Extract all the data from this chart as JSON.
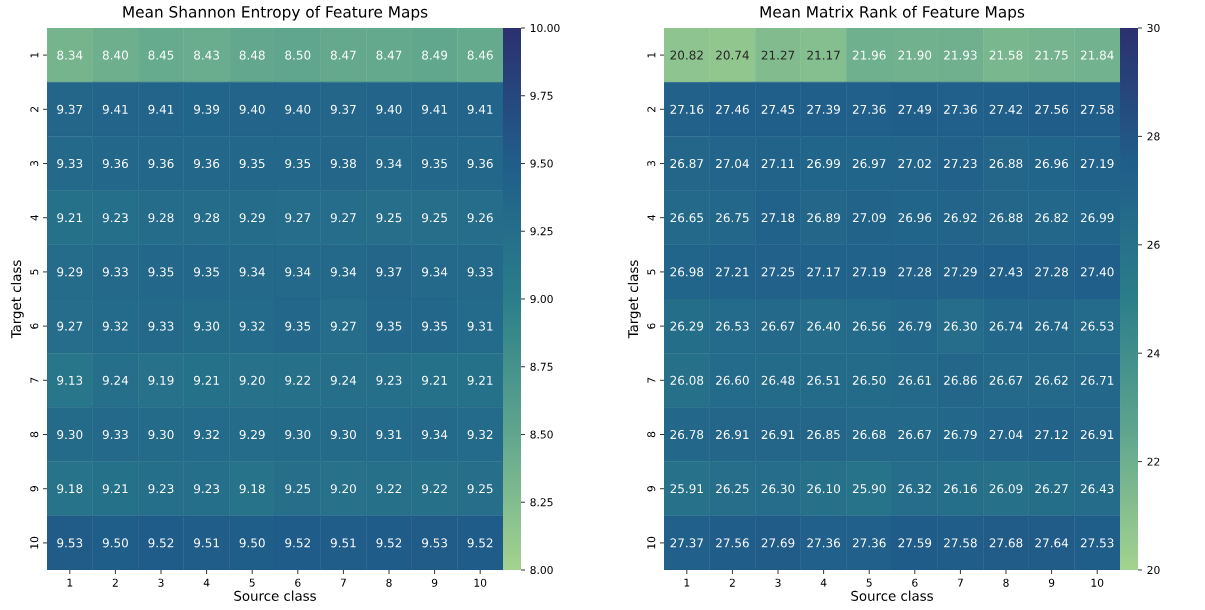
{
  "chart_data": [
    {
      "type": "heatmap",
      "title": "Mean Shannon Entropy of Feature Maps",
      "xlabel": "Source class",
      "ylabel": "Target class",
      "categories": [
        "1",
        "2",
        "3",
        "4",
        "5",
        "6",
        "7",
        "8",
        "9",
        "10"
      ],
      "y_categories": [
        "1",
        "2",
        "3",
        "4",
        "5",
        "6",
        "7",
        "8",
        "9",
        "10"
      ],
      "cells": [
        [
          8.34,
          8.4,
          8.45,
          8.43,
          8.48,
          8.5,
          8.47,
          8.47,
          8.49,
          8.46
        ],
        [
          9.37,
          9.41,
          9.41,
          9.39,
          9.4,
          9.4,
          9.37,
          9.4,
          9.41,
          9.41
        ],
        [
          9.33,
          9.36,
          9.36,
          9.36,
          9.35,
          9.35,
          9.38,
          9.34,
          9.35,
          9.36
        ],
        [
          9.21,
          9.23,
          9.28,
          9.28,
          9.29,
          9.27,
          9.27,
          9.25,
          9.25,
          9.26
        ],
        [
          9.29,
          9.33,
          9.35,
          9.35,
          9.34,
          9.34,
          9.34,
          9.37,
          9.34,
          9.33
        ],
        [
          9.27,
          9.32,
          9.33,
          9.3,
          9.32,
          9.35,
          9.27,
          9.35,
          9.35,
          9.31
        ],
        [
          9.13,
          9.24,
          9.19,
          9.21,
          9.2,
          9.22,
          9.24,
          9.23,
          9.21,
          9.21
        ],
        [
          9.3,
          9.33,
          9.3,
          9.32,
          9.29,
          9.3,
          9.3,
          9.31,
          9.34,
          9.32
        ],
        [
          9.18,
          9.21,
          9.23,
          9.23,
          9.18,
          9.25,
          9.2,
          9.22,
          9.22,
          9.25
        ],
        [
          9.53,
          9.5,
          9.52,
          9.51,
          9.5,
          9.52,
          9.51,
          9.52,
          9.53,
          9.52
        ]
      ],
      "cell_labels": [
        [
          "8.34",
          "8.40",
          "8.45",
          "8.43",
          "8.48",
          "8.50",
          "8.47",
          "8.47",
          "8.49",
          "8.46"
        ],
        [
          "9.37",
          "9.41",
          "9.41",
          "9.39",
          "9.40",
          "9.40",
          "9.37",
          "9.40",
          "9.41",
          "9.41"
        ],
        [
          "9.33",
          "9.36",
          "9.36",
          "9.36",
          "9.35",
          "9.35",
          "9.38",
          "9.34",
          "9.35",
          "9.36"
        ],
        [
          "9.21",
          "9.23",
          "9.28",
          "9.28",
          "9.29",
          "9.27",
          "9.27",
          "9.25",
          "9.25",
          "9.26"
        ],
        [
          "9.29",
          "9.33",
          "9.35",
          "9.35",
          "9.34",
          "9.34",
          "9.34",
          "9.37",
          "9.34",
          "9.33"
        ],
        [
          "9.27",
          "9.32",
          "9.33",
          "9.30",
          "9.32",
          "9.35",
          "9.27",
          "9.35",
          "9.35",
          "9.31"
        ],
        [
          "9.13",
          "9.24",
          "9.19",
          "9.21",
          "9.20",
          "9.22",
          "9.24",
          "9.23",
          "9.21",
          "9.21"
        ],
        [
          "9.30",
          "9.33",
          "9.30",
          "9.32",
          "9.29",
          "9.30",
          "9.30",
          "9.31",
          "9.34",
          "9.32"
        ],
        [
          "9.18",
          "9.21",
          "9.23",
          "9.23",
          "9.18",
          "9.25",
          "9.20",
          "9.22",
          "9.22",
          "9.25"
        ],
        [
          "9.53",
          "9.50",
          "9.52",
          "9.51",
          "9.50",
          "9.52",
          "9.51",
          "9.52",
          "9.53",
          "9.52"
        ]
      ],
      "clim": [
        8,
        10
      ],
      "cticks": [
        {
          "value": 8,
          "label": "8.00"
        },
        {
          "value": 8.25,
          "label": "8.25"
        },
        {
          "value": 8.5,
          "label": "8.50"
        },
        {
          "value": 8.75,
          "label": "8.75"
        },
        {
          "value": 9,
          "label": "9.00"
        },
        {
          "value": 9.25,
          "label": "9.25"
        },
        {
          "value": 9.5,
          "label": "9.50"
        },
        {
          "value": 9.75,
          "label": "9.75"
        },
        {
          "value": 10,
          "label": "10.00"
        }
      ]
    },
    {
      "type": "heatmap",
      "title": "Mean Matrix Rank of Feature Maps",
      "xlabel": "Source class",
      "ylabel": "Target class",
      "categories": [
        "1",
        "2",
        "3",
        "4",
        "5",
        "6",
        "7",
        "8",
        "9",
        "10"
      ],
      "y_categories": [
        "1",
        "2",
        "3",
        "4",
        "5",
        "6",
        "7",
        "8",
        "9",
        "10"
      ],
      "cells": [
        [
          20.82,
          20.74,
          21.27,
          21.17,
          21.96,
          21.9,
          21.93,
          21.58,
          21.75,
          21.84
        ],
        [
          27.16,
          27.46,
          27.45,
          27.39,
          27.36,
          27.49,
          27.36,
          27.42,
          27.56,
          27.58
        ],
        [
          26.87,
          27.04,
          27.11,
          26.99,
          26.97,
          27.02,
          27.23,
          26.88,
          26.96,
          27.19
        ],
        [
          26.65,
          26.75,
          27.18,
          26.89,
          27.09,
          26.96,
          26.92,
          26.88,
          26.82,
          26.99
        ],
        [
          26.98,
          27.21,
          27.25,
          27.17,
          27.19,
          27.28,
          27.29,
          27.43,
          27.28,
          27.4
        ],
        [
          26.29,
          26.53,
          26.67,
          26.4,
          26.56,
          26.79,
          26.3,
          26.74,
          26.74,
          26.53
        ],
        [
          26.08,
          26.6,
          26.48,
          26.51,
          26.5,
          26.61,
          26.86,
          26.67,
          26.62,
          26.71
        ],
        [
          26.78,
          26.91,
          26.91,
          26.85,
          26.68,
          26.67,
          26.79,
          27.04,
          27.12,
          26.91
        ],
        [
          25.91,
          26.25,
          26.3,
          26.1,
          25.9,
          26.32,
          26.16,
          26.09,
          26.27,
          26.43
        ],
        [
          27.37,
          27.56,
          27.69,
          27.36,
          27.36,
          27.59,
          27.58,
          27.68,
          27.64,
          27.53
        ]
      ],
      "cell_labels": [
        [
          "20.82",
          "20.74",
          "21.27",
          "21.17",
          "21.96",
          "21.90",
          "21.93",
          "21.58",
          "21.75",
          "21.84"
        ],
        [
          "27.16",
          "27.46",
          "27.45",
          "27.39",
          "27.36",
          "27.49",
          "27.36",
          "27.42",
          "27.56",
          "27.58"
        ],
        [
          "26.87",
          "27.04",
          "27.11",
          "26.99",
          "26.97",
          "27.02",
          "27.23",
          "26.88",
          "26.96",
          "27.19"
        ],
        [
          "26.65",
          "26.75",
          "27.18",
          "26.89",
          "27.09",
          "26.96",
          "26.92",
          "26.88",
          "26.82",
          "26.99"
        ],
        [
          "26.98",
          "27.21",
          "27.25",
          "27.17",
          "27.19",
          "27.28",
          "27.29",
          "27.43",
          "27.28",
          "27.40"
        ],
        [
          "26.29",
          "26.53",
          "26.67",
          "26.40",
          "26.56",
          "26.79",
          "26.30",
          "26.74",
          "26.74",
          "26.53"
        ],
        [
          "26.08",
          "26.60",
          "26.48",
          "26.51",
          "26.50",
          "26.61",
          "26.86",
          "26.67",
          "26.62",
          "26.71"
        ],
        [
          "26.78",
          "26.91",
          "26.91",
          "26.85",
          "26.68",
          "26.67",
          "26.79",
          "27.04",
          "27.12",
          "26.91"
        ],
        [
          "25.91",
          "26.25",
          "26.30",
          "26.10",
          "25.90",
          "26.32",
          "26.16",
          "26.09",
          "26.27",
          "26.43"
        ],
        [
          "27.37",
          "27.56",
          "27.69",
          "27.36",
          "27.36",
          "27.59",
          "27.58",
          "27.68",
          "27.64",
          "27.53"
        ]
      ],
      "clim": [
        20,
        30
      ],
      "cticks": [
        20,
        22,
        24,
        26,
        28,
        30
      ]
    }
  ]
}
